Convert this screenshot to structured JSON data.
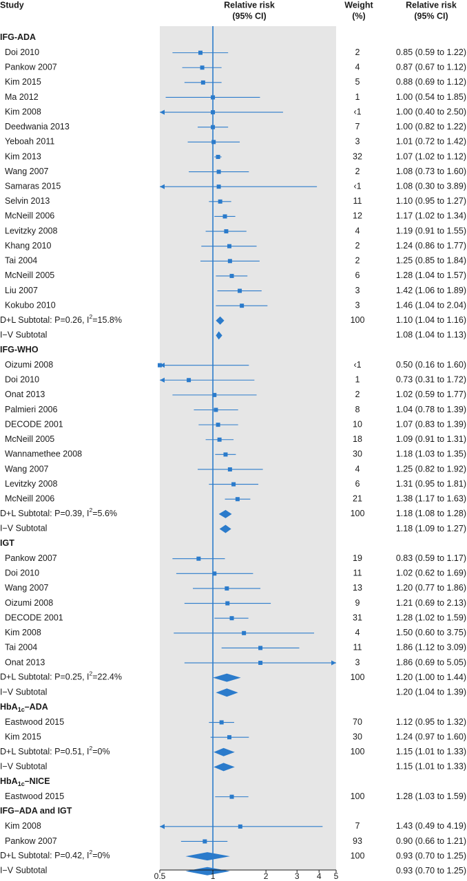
{
  "chart_data": {
    "type": "forest",
    "headers": {
      "study": "Study",
      "rr_line1": "Relative risk",
      "rr_line2": "(95% CI)",
      "weight_line1": "Weight",
      "weight_line2": "(%)",
      "ci_line1": "Relative risk",
      "ci_line2": "(95% CI)"
    },
    "x_axis": {
      "scale": "log",
      "range": [
        0.5,
        5
      ],
      "ticks": [
        "0.5",
        "1",
        "2",
        "3",
        "4",
        "5"
      ],
      "tick_values": [
        0.5,
        1,
        2,
        3,
        4,
        5
      ],
      "reference_line": 1
    },
    "colors": {
      "marker": "#2b7bcb",
      "panel": "#e6e6e6",
      "text": "#1a1a1a"
    },
    "groups": [
      {
        "name_prefix": "IFG-ADA",
        "name_sub": "",
        "name_suffix": "",
        "rows": [
          {
            "label": "Doi 2010",
            "est": 0.85,
            "lo": 0.59,
            "hi": 1.22,
            "weight": "2",
            "ci": "0.85 (0.59 to 1.22)"
          },
          {
            "label": "Pankow 2007",
            "est": 0.87,
            "lo": 0.67,
            "hi": 1.12,
            "weight": "4",
            "ci": "0.87 (0.67 to 1.12)"
          },
          {
            "label": "Kim 2015",
            "est": 0.88,
            "lo": 0.69,
            "hi": 1.12,
            "weight": "5",
            "ci": "0.88 (0.69 to 1.12)"
          },
          {
            "label": "Ma 2012",
            "est": 1.0,
            "lo": 0.54,
            "hi": 1.85,
            "weight": "1",
            "ci": "1.00 (0.54 to 1.85)"
          },
          {
            "label": "Kim 2008",
            "est": 1.0,
            "lo": 0.4,
            "hi": 2.5,
            "weight": "‹1",
            "ci": "1.00 (0.40 to 2.50)"
          },
          {
            "label": "Deedwania 2013",
            "est": 1.0,
            "lo": 0.82,
            "hi": 1.22,
            "weight": "7",
            "ci": "1.00 (0.82 to 1.22)"
          },
          {
            "label": "Yeboah 2011",
            "est": 1.01,
            "lo": 0.72,
            "hi": 1.42,
            "weight": "3",
            "ci": "1.01 (0.72 to 1.42)"
          },
          {
            "label": "Kim 2013",
            "est": 1.07,
            "lo": 1.02,
            "hi": 1.12,
            "weight": "32",
            "ci": "1.07 (1.02 to 1.12)"
          },
          {
            "label": "Wang 2007",
            "est": 1.08,
            "lo": 0.73,
            "hi": 1.6,
            "weight": "2",
            "ci": "1.08 (0.73 to 1.60)"
          },
          {
            "label": "Samaras 2015",
            "est": 1.08,
            "lo": 0.3,
            "hi": 3.89,
            "weight": "‹1",
            "ci": "1.08 (0.30 to 3.89)"
          },
          {
            "label": "Selvin 2013",
            "est": 1.1,
            "lo": 0.95,
            "hi": 1.27,
            "weight": "11",
            "ci": "1.10 (0.95 to 1.27)"
          },
          {
            "label": "McNeill 2006",
            "est": 1.17,
            "lo": 1.02,
            "hi": 1.34,
            "weight": "12",
            "ci": "1.17 (1.02 to 1.34)"
          },
          {
            "label": "Levitzky 2008",
            "est": 1.19,
            "lo": 0.91,
            "hi": 1.55,
            "weight": "4",
            "ci": "1.19 (0.91 to 1.55)"
          },
          {
            "label": "Khang 2010",
            "est": 1.24,
            "lo": 0.86,
            "hi": 1.77,
            "weight": "2",
            "ci": "1.24 (0.86 to 1.77)"
          },
          {
            "label": "Tai 2004",
            "est": 1.25,
            "lo": 0.85,
            "hi": 1.84,
            "weight": "2",
            "ci": "1.25 (0.85 to 1.84)"
          },
          {
            "label": "McNeill 2005",
            "est": 1.28,
            "lo": 1.04,
            "hi": 1.57,
            "weight": "6",
            "ci": "1.28 (1.04 to 1.57)"
          },
          {
            "label": "Liu 2007",
            "est": 1.42,
            "lo": 1.06,
            "hi": 1.89,
            "weight": "3",
            "ci": "1.42 (1.06 to 1.89)"
          },
          {
            "label": "Kokubo 2010",
            "est": 1.46,
            "lo": 1.04,
            "hi": 2.04,
            "weight": "3",
            "ci": "1.46 (1.04 to 2.04)"
          }
        ],
        "subtotals": [
          {
            "label_prefix": "D+L Subtotal: P=0.26, I",
            "label_sup": "2",
            "label_suffix": "=15.8%",
            "est": 1.1,
            "lo": 1.04,
            "hi": 1.16,
            "weight": "100",
            "ci": "1.10 (1.04 to 1.16)"
          },
          {
            "label_prefix": "I−V Subtotal",
            "label_sup": "",
            "label_suffix": "",
            "est": 1.08,
            "lo": 1.04,
            "hi": 1.13,
            "weight": "",
            "ci": "1.08 (1.04 to 1.13)"
          }
        ]
      },
      {
        "name_prefix": "IFG-WHO",
        "name_sub": "",
        "name_suffix": "",
        "rows": [
          {
            "label": "Oizumi 2008",
            "est": 0.5,
            "lo": 0.16,
            "hi": 1.6,
            "weight": "‹1",
            "ci": "0.50 (0.16 to 1.60)"
          },
          {
            "label": "Doi 2010",
            "est": 0.73,
            "lo": 0.31,
            "hi": 1.72,
            "weight": "1",
            "ci": "0.73 (0.31 to 1.72)"
          },
          {
            "label": "Onat 2013",
            "est": 1.02,
            "lo": 0.59,
            "hi": 1.77,
            "weight": "2",
            "ci": "1.02 (0.59 to 1.77)"
          },
          {
            "label": "Palmieri 2006",
            "est": 1.04,
            "lo": 0.78,
            "hi": 1.39,
            "weight": "8",
            "ci": "1.04 (0.78 to 1.39)"
          },
          {
            "label": "DECODE 2001",
            "est": 1.07,
            "lo": 0.83,
            "hi": 1.39,
            "weight": "10",
            "ci": "1.07 (0.83 to 1.39)"
          },
          {
            "label": "McNeill 2005",
            "est": 1.09,
            "lo": 0.91,
            "hi": 1.31,
            "weight": "18",
            "ci": "1.09 (0.91 to 1.31)"
          },
          {
            "label": "Wannamethee 2008",
            "est": 1.18,
            "lo": 1.03,
            "hi": 1.35,
            "weight": "30",
            "ci": "1.18 (1.03 to 1.35)"
          },
          {
            "label": "Wang 2007",
            "est": 1.25,
            "lo": 0.82,
            "hi": 1.92,
            "weight": "4",
            "ci": "1.25 (0.82 to 1.92)"
          },
          {
            "label": "Levitzky 2008",
            "est": 1.31,
            "lo": 0.95,
            "hi": 1.81,
            "weight": "6",
            "ci": "1.31 (0.95 to 1.81)"
          },
          {
            "label": "McNeill 2006",
            "est": 1.38,
            "lo": 1.17,
            "hi": 1.63,
            "weight": "21",
            "ci": "1.38 (1.17 to 1.63)"
          }
        ],
        "subtotals": [
          {
            "label_prefix": "D+L Subtotal: P=0.39, I",
            "label_sup": "2",
            "label_suffix": "=5.6%",
            "est": 1.18,
            "lo": 1.08,
            "hi": 1.28,
            "weight": "100",
            "ci": "1.18 (1.08 to 1.28)"
          },
          {
            "label_prefix": "I−V Subtotal",
            "label_sup": "",
            "label_suffix": "",
            "est": 1.18,
            "lo": 1.09,
            "hi": 1.27,
            "weight": "",
            "ci": "1.18 (1.09 to 1.27)"
          }
        ]
      },
      {
        "name_prefix": "IGT",
        "name_sub": "",
        "name_suffix": "",
        "rows": [
          {
            "label": "Pankow 2007",
            "est": 0.83,
            "lo": 0.59,
            "hi": 1.17,
            "weight": "19",
            "ci": "0.83 (0.59 to 1.17)"
          },
          {
            "label": "Doi 2010",
            "est": 1.02,
            "lo": 0.62,
            "hi": 1.69,
            "weight": "11",
            "ci": "1.02 (0.62 to 1.69)"
          },
          {
            "label": "Wang 2007",
            "est": 1.2,
            "lo": 0.77,
            "hi": 1.86,
            "weight": "13",
            "ci": "1.20 (0.77 to 1.86)"
          },
          {
            "label": "Oizumi 2008",
            "est": 1.21,
            "lo": 0.69,
            "hi": 2.13,
            "weight": "9",
            "ci": "1.21 (0.69 to 2.13)"
          },
          {
            "label": "DECODE 2001",
            "est": 1.28,
            "lo": 1.02,
            "hi": 1.59,
            "weight": "31",
            "ci": "1.28 (1.02 to 1.59)"
          },
          {
            "label": "Kim 2008",
            "est": 1.5,
            "lo": 0.6,
            "hi": 3.75,
            "weight": "4",
            "ci": "1.50 (0.60 to 3.75)"
          },
          {
            "label": "Tai 2004",
            "est": 1.86,
            "lo": 1.12,
            "hi": 3.09,
            "weight": "11",
            "ci": "1.86 (1.12 to 3.09)"
          },
          {
            "label": "Onat 2013",
            "est": 1.86,
            "lo": 0.69,
            "hi": 5.05,
            "weight": "3",
            "ci": "1.86 (0.69 to 5.05)"
          }
        ],
        "subtotals": [
          {
            "label_prefix": "D+L Subtotal: P=0.25, I",
            "label_sup": "2",
            "label_suffix": "=22.4%",
            "est": 1.2,
            "lo": 1.0,
            "hi": 1.44,
            "weight": "100",
            "ci": "1.20 (1.00 to 1.44)"
          },
          {
            "label_prefix": "I−V Subtotal",
            "label_sup": "",
            "label_suffix": "",
            "est": 1.2,
            "lo": 1.04,
            "hi": 1.39,
            "weight": "",
            "ci": "1.20 (1.04 to 1.39)"
          }
        ]
      },
      {
        "name_prefix": "HbA",
        "name_sub": "1c",
        "name_suffix": "–ADA",
        "rows": [
          {
            "label": "Eastwood 2015",
            "est": 1.12,
            "lo": 0.95,
            "hi": 1.32,
            "weight": "70",
            "ci": "1.12 (0.95 to 1.32)"
          },
          {
            "label": "Kim 2015",
            "est": 1.24,
            "lo": 0.97,
            "hi": 1.6,
            "weight": "30",
            "ci": "1.24 (0.97 to 1.60)"
          }
        ],
        "subtotals": [
          {
            "label_prefix": "D+L Subtotal: P=0.51, I",
            "label_sup": "2",
            "label_suffix": "=0%",
            "est": 1.15,
            "lo": 1.01,
            "hi": 1.33,
            "weight": "100",
            "ci": "1.15 (1.01 to 1.33)"
          },
          {
            "label_prefix": "I−V Subtotal",
            "label_sup": "",
            "label_suffix": "",
            "est": 1.15,
            "lo": 1.01,
            "hi": 1.33,
            "weight": "",
            "ci": "1.15 (1.01 to 1.33)"
          }
        ]
      },
      {
        "name_prefix": "HbA",
        "name_sub": "1c",
        "name_suffix": "–NICE",
        "rows": [
          {
            "label": "Eastwood 2015",
            "est": 1.28,
            "lo": 1.03,
            "hi": 1.59,
            "weight": "100",
            "ci": "1.28 (1.03 to 1.59)"
          }
        ],
        "subtotals": []
      },
      {
        "name_prefix": "IFG–ADA and IGT",
        "name_sub": "",
        "name_suffix": "",
        "rows": [
          {
            "label": "Kim 2008",
            "est": 1.43,
            "lo": 0.49,
            "hi": 4.19,
            "weight": "7",
            "ci": "1.43 (0.49 to 4.19)"
          },
          {
            "label": "Pankow 2007",
            "est": 0.9,
            "lo": 0.66,
            "hi": 1.21,
            "weight": "93",
            "ci": "0.90 (0.66 to 1.21)"
          }
        ],
        "subtotals": [
          {
            "label_prefix": "D+L Subtotal: P=0.42, I",
            "label_sup": "2",
            "label_suffix": "=0%",
            "est": 0.93,
            "lo": 0.7,
            "hi": 1.25,
            "weight": "100",
            "ci": "0.93 (0.70 to 1.25)"
          },
          {
            "label_prefix": "I−V Subtotal",
            "label_sup": "",
            "label_suffix": "",
            "est": 0.93,
            "lo": 0.7,
            "hi": 1.25,
            "weight": "",
            "ci": "0.93 (0.70 to 1.25)"
          }
        ]
      }
    ]
  }
}
